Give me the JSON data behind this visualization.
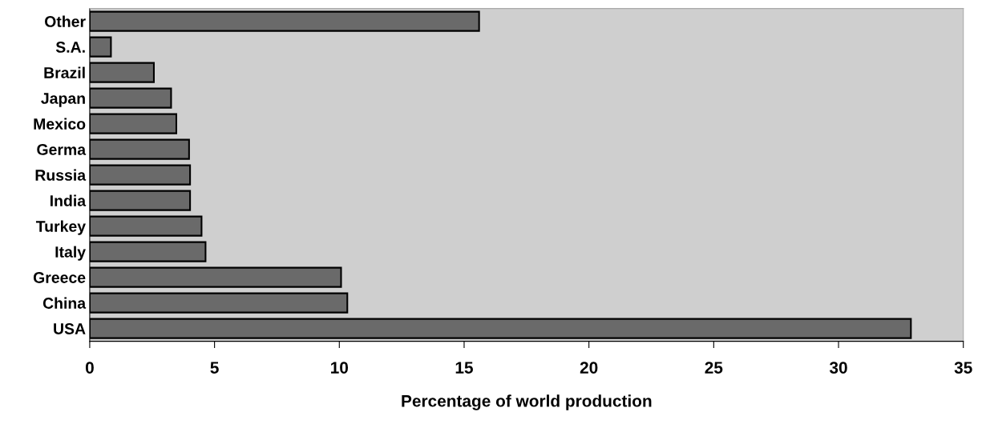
{
  "chart_data": {
    "type": "bar",
    "orientation": "horizontal",
    "xlabel": "Percentage of world production",
    "categories": [
      "Other",
      "S.A.",
      "Brazil",
      "Japan",
      "Mexico",
      "Germa",
      "Russia",
      "India",
      "Turkey",
      "Italy",
      "Greece",
      "China",
      "USA"
    ],
    "values": [
      15.6,
      0.85,
      2.57,
      3.26,
      3.47,
      3.98,
      4.02,
      4.02,
      4.48,
      4.64,
      10.07,
      10.32,
      32.9
    ],
    "color": "#6a6a6a",
    "xlim": [
      0,
      35
    ],
    "xticks": [
      0,
      5,
      10,
      15,
      20,
      25,
      30,
      35
    ],
    "grid": false
  }
}
